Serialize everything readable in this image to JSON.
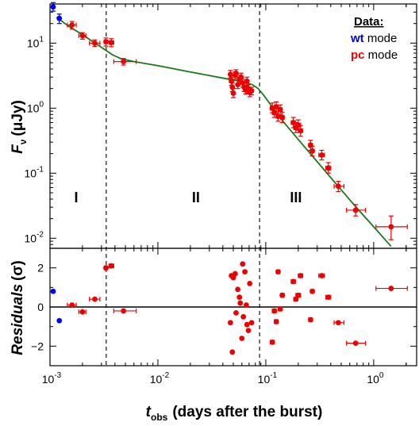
{
  "chart_data": [
    {
      "type": "scatter",
      "panel": "flux",
      "ylabel_main": "F",
      "ylabel_sub": "ν",
      "ylabel_unit": "(μJy)",
      "xscale": "log",
      "yscale": "log",
      "xlim": [
        0.001,
        2.5
      ],
      "ylim": [
        0.007,
        40
      ],
      "x_ticks": [
        {
          "v": 0.001,
          "base": "10",
          "exp": "-3"
        },
        {
          "v": 0.01,
          "base": "10",
          "exp": "-2"
        },
        {
          "v": 0.1,
          "base": "10",
          "exp": "-1"
        },
        {
          "v": 1,
          "base": "10",
          "exp": "0"
        }
      ],
      "y_ticks": [
        {
          "v": 0.01,
          "base": "10",
          "exp": "-2"
        },
        {
          "v": 0.1,
          "base": "10",
          "exp": "-1"
        },
        {
          "v": 1,
          "base": "10",
          "exp": "0"
        },
        {
          "v": 10,
          "base": "10",
          "exp": "1"
        }
      ],
      "legend": {
        "title": "Data:",
        "entries": [
          {
            "code": "wt",
            "text": " mode",
            "color": "#0000ee"
          },
          {
            "code": "pc",
            "text": " mode",
            "color": "#ee0000"
          }
        ]
      },
      "segment_labels": [
        {
          "text": "I",
          "x": 0.00175,
          "y": 0.042
        },
        {
          "text": "II",
          "x": 0.0225,
          "y": 0.042
        },
        {
          "text": "III",
          "x": 0.19,
          "y": 0.042
        }
      ],
      "breaks": [
        0.00332,
        0.0876
      ],
      "model_line": {
        "color": "#1a7a1a",
        "x": [
          0.00115,
          0.0015,
          0.002,
          0.0025,
          0.003,
          0.0034,
          0.0038,
          0.0045,
          0.006,
          0.01,
          0.02,
          0.04,
          0.06,
          0.075,
          0.085,
          0.095,
          0.11,
          0.15,
          0.2,
          0.3,
          0.45,
          0.7,
          1.0,
          1.45
        ],
        "y": [
          25,
          18,
          13.5,
          10.5,
          8.6,
          7.5,
          6.6,
          5.8,
          5.2,
          4.5,
          3.6,
          2.9,
          2.55,
          2.3,
          2.0,
          1.6,
          1.15,
          0.58,
          0.33,
          0.15,
          0.068,
          0.029,
          0.015,
          0.0075
        ]
      },
      "series": [
        {
          "name": "wt mode",
          "color": "#0000ee",
          "points": [
            {
              "x": 0.00107,
              "y": 36,
              "yerr": [
                31,
                42
              ]
            },
            {
              "x": 0.00122,
              "y": 24,
              "yerr": [
                20,
                28
              ]
            }
          ]
        },
        {
          "name": "pc mode",
          "color": "#ee0000",
          "points": [
            {
              "x": 0.0016,
              "y": 19,
              "xerr": [
                0.00145,
                0.00175
              ],
              "yerr": [
                16.5,
                21.5
              ]
            },
            {
              "x": 0.002,
              "y": 13,
              "xerr": [
                0.00185,
                0.00215
              ],
              "yerr": [
                11.5,
                14.5
              ]
            },
            {
              "x": 0.0026,
              "y": 10,
              "xerr": [
                0.00232,
                0.0029
              ],
              "yerr": [
                8.9,
                11.2
              ]
            },
            {
              "x": 0.0033,
              "y": 10.5,
              "xerr": [
                0.00318,
                0.00342
              ],
              "yerr": [
                9.0,
                12.0
              ]
            },
            {
              "x": 0.0037,
              "y": 10.2,
              "xerr": [
                0.00352,
                0.0039
              ],
              "yerr": [
                8.8,
                11.7
              ]
            },
            {
              "x": 0.0048,
              "y": 5.2,
              "xerr": [
                0.0039,
                0.0063
              ],
              "yerr": [
                4.6,
                5.8
              ]
            },
            {
              "x": 0.047,
              "y": 3.3,
              "yerr": [
                2.9,
                3.8
              ]
            },
            {
              "x": 0.048,
              "y": 2.6,
              "yerr": [
                2.25,
                3.0
              ]
            },
            {
              "x": 0.049,
              "y": 2.1,
              "yerr": [
                1.8,
                2.45
              ]
            },
            {
              "x": 0.05,
              "y": 1.7,
              "yerr": [
                1.45,
                2.0
              ]
            },
            {
              "x": 0.052,
              "y": 3.2,
              "yerr": [
                2.8,
                3.6
              ]
            },
            {
              "x": 0.053,
              "y": 3.45,
              "yerr": [
                3.0,
                3.9
              ]
            },
            {
              "x": 0.055,
              "y": 2.3,
              "yerr": [
                2.0,
                2.65
              ]
            },
            {
              "x": 0.057,
              "y": 2.8,
              "yerr": [
                2.45,
                3.2
              ]
            },
            {
              "x": 0.059,
              "y": 3.0,
              "yerr": [
                2.6,
                3.45
              ]
            },
            {
              "x": 0.061,
              "y": 2.45,
              "yerr": [
                2.1,
                2.8
              ]
            },
            {
              "x": 0.063,
              "y": 2.1,
              "yerr": [
                1.8,
                2.4
              ]
            },
            {
              "x": 0.065,
              "y": 1.9,
              "yerr": [
                1.65,
                2.2
              ]
            },
            {
              "x": 0.067,
              "y": 2.6,
              "yerr": [
                2.25,
                3.0
              ]
            },
            {
              "x": 0.069,
              "y": 2.0,
              "yerr": [
                1.7,
                2.3
              ]
            },
            {
              "x": 0.071,
              "y": 1.75,
              "yerr": [
                1.5,
                2.0
              ]
            },
            {
              "x": 0.074,
              "y": 1.85,
              "yerr": [
                1.6,
                2.1
              ]
            },
            {
              "x": 0.115,
              "y": 1.0,
              "xerr": [
                0.11,
                0.12
              ],
              "yerr": [
                0.85,
                1.2
              ]
            },
            {
              "x": 0.12,
              "y": 0.85,
              "xerr": [
                0.115,
                0.125
              ],
              "yerr": [
                0.72,
                1.0
              ]
            },
            {
              "x": 0.125,
              "y": 1.05,
              "xerr": [
                0.12,
                0.13
              ],
              "yerr": [
                0.9,
                1.25
              ]
            },
            {
              "x": 0.13,
              "y": 0.75,
              "xerr": [
                0.125,
                0.135
              ],
              "yerr": [
                0.63,
                0.9
              ]
            },
            {
              "x": 0.136,
              "y": 0.95,
              "xerr": [
                0.13,
                0.142
              ],
              "yerr": [
                0.8,
                1.12
              ]
            },
            {
              "x": 0.142,
              "y": 0.72,
              "xerr": [
                0.137,
                0.148
              ],
              "yerr": [
                0.6,
                0.86
              ]
            },
            {
              "x": 0.18,
              "y": 0.6,
              "xerr": [
                0.172,
                0.188
              ],
              "yerr": [
                0.5,
                0.72
              ]
            },
            {
              "x": 0.19,
              "y": 0.5,
              "xerr": [
                0.182,
                0.198
              ],
              "yerr": [
                0.42,
                0.6
              ]
            },
            {
              "x": 0.2,
              "y": 0.55,
              "xerr": [
                0.19,
                0.21
              ],
              "yerr": [
                0.46,
                0.66
              ]
            },
            {
              "x": 0.21,
              "y": 0.45,
              "xerr": [
                0.2,
                0.22
              ],
              "yerr": [
                0.37,
                0.54
              ]
            },
            {
              "x": 0.26,
              "y": 0.27,
              "xerr": [
                0.25,
                0.27
              ],
              "yerr": [
                0.225,
                0.32
              ]
            },
            {
              "x": 0.27,
              "y": 0.22,
              "xerr": [
                0.26,
                0.28
              ],
              "yerr": [
                0.185,
                0.26
              ]
            },
            {
              "x": 0.33,
              "y": 0.19,
              "xerr": [
                0.31,
                0.35
              ],
              "yerr": [
                0.16,
                0.225
              ]
            },
            {
              "x": 0.38,
              "y": 0.12,
              "xerr": [
                0.36,
                0.4
              ],
              "yerr": [
                0.1,
                0.145
              ]
            },
            {
              "x": 0.47,
              "y": 0.063,
              "xerr": [
                0.43,
                0.53
              ],
              "yerr": [
                0.052,
                0.075
              ]
            },
            {
              "x": 0.68,
              "y": 0.027,
              "xerr": [
                0.56,
                0.84
              ],
              "yerr": [
                0.022,
                0.033
              ]
            },
            {
              "x": 1.45,
              "y": 0.015,
              "xerr": [
                1.05,
                2.05
              ],
              "yerr": [
                0.0095,
                0.022
              ]
            }
          ]
        }
      ]
    },
    {
      "type": "scatter",
      "panel": "residuals",
      "ylabel_main": "Residuals",
      "ylabel_unit": "(σ)",
      "xlabel_main": "t",
      "xlabel_sub": "obs",
      "xlabel_unit": "(days after the burst)",
      "xscale": "log",
      "xlim": [
        0.001,
        2.5
      ],
      "ylim": [
        -3,
        3
      ],
      "y_ticks": [
        -2,
        0,
        2
      ],
      "zero_line": 0,
      "series": [
        {
          "name": "wt mode",
          "color": "#0000ee",
          "points": [
            {
              "x": 0.00107,
              "y": 0.8
            },
            {
              "x": 0.00122,
              "y": -0.7
            }
          ]
        },
        {
          "name": "pc mode",
          "color": "#ee0000",
          "points": [
            {
              "x": 0.0016,
              "y": 0.1,
              "xerr": [
                0.00145,
                0.00175
              ]
            },
            {
              "x": 0.002,
              "y": -0.25,
              "xerr": [
                0.00185,
                0.00215
              ]
            },
            {
              "x": 0.0026,
              "y": 0.4,
              "xerr": [
                0.00232,
                0.0029
              ]
            },
            {
              "x": 0.0033,
              "y": 2.0,
              "xerr": [
                0.00318,
                0.00342
              ]
            },
            {
              "x": 0.0037,
              "y": 2.1,
              "xerr": [
                0.00352,
                0.0039
              ]
            },
            {
              "x": 0.0048,
              "y": -0.2,
              "xerr": [
                0.0039,
                0.0063
              ]
            },
            {
              "x": 0.047,
              "y": -0.8
            },
            {
              "x": 0.048,
              "y": 1.6
            },
            {
              "x": 0.049,
              "y": -2.3
            },
            {
              "x": 0.05,
              "y": 1.5
            },
            {
              "x": 0.052,
              "y": 1.7
            },
            {
              "x": 0.053,
              "y": -0.3
            },
            {
              "x": 0.055,
              "y": 0.9
            },
            {
              "x": 0.057,
              "y": 0.5
            },
            {
              "x": 0.058,
              "y": 0.2
            },
            {
              "x": 0.06,
              "y": -1.6
            },
            {
              "x": 0.061,
              "y": 2.2
            },
            {
              "x": 0.062,
              "y": -0.5
            },
            {
              "x": 0.064,
              "y": 1.8
            },
            {
              "x": 0.066,
              "y": 0.1
            },
            {
              "x": 0.067,
              "y": -0.9
            },
            {
              "x": 0.069,
              "y": -1.2
            },
            {
              "x": 0.071,
              "y": 1.2
            },
            {
              "x": 0.074,
              "y": -0.8
            },
            {
              "x": 0.115,
              "y": -1.8,
              "xerr": [
                0.11,
                0.12
              ]
            },
            {
              "x": 0.12,
              "y": -0.2,
              "xerr": [
                0.115,
                0.125
              ]
            },
            {
              "x": 0.125,
              "y": -0.75,
              "xerr": [
                0.12,
                0.13
              ]
            },
            {
              "x": 0.13,
              "y": 1.8,
              "xerr": [
                0.125,
                0.135
              ]
            },
            {
              "x": 0.136,
              "y": -0.1,
              "xerr": [
                0.13,
                0.142
              ]
            },
            {
              "x": 0.142,
              "y": 0.6,
              "xerr": [
                0.137,
                0.148
              ]
            },
            {
              "x": 0.18,
              "y": 1.3,
              "xerr": [
                0.172,
                0.188
              ]
            },
            {
              "x": 0.19,
              "y": 0.4,
              "xerr": [
                0.182,
                0.198
              ]
            },
            {
              "x": 0.2,
              "y": 0.6,
              "xerr": [
                0.19,
                0.21
              ]
            },
            {
              "x": 0.21,
              "y": 1.6,
              "xerr": [
                0.2,
                0.22
              ]
            },
            {
              "x": 0.26,
              "y": -0.65,
              "xerr": [
                0.25,
                0.27
              ]
            },
            {
              "x": 0.27,
              "y": 0.8,
              "xerr": [
                0.26,
                0.28
              ]
            },
            {
              "x": 0.33,
              "y": 1.6,
              "xerr": [
                0.31,
                0.35
              ]
            },
            {
              "x": 0.38,
              "y": 0.5,
              "xerr": [
                0.36,
                0.4
              ]
            },
            {
              "x": 0.47,
              "y": -0.8,
              "xerr": [
                0.43,
                0.53
              ]
            },
            {
              "x": 0.68,
              "y": -1.85,
              "xerr": [
                0.56,
                0.84
              ]
            },
            {
              "x": 1.45,
              "y": 0.95,
              "xerr": [
                1.05,
                2.05
              ]
            }
          ]
        }
      ]
    }
  ]
}
